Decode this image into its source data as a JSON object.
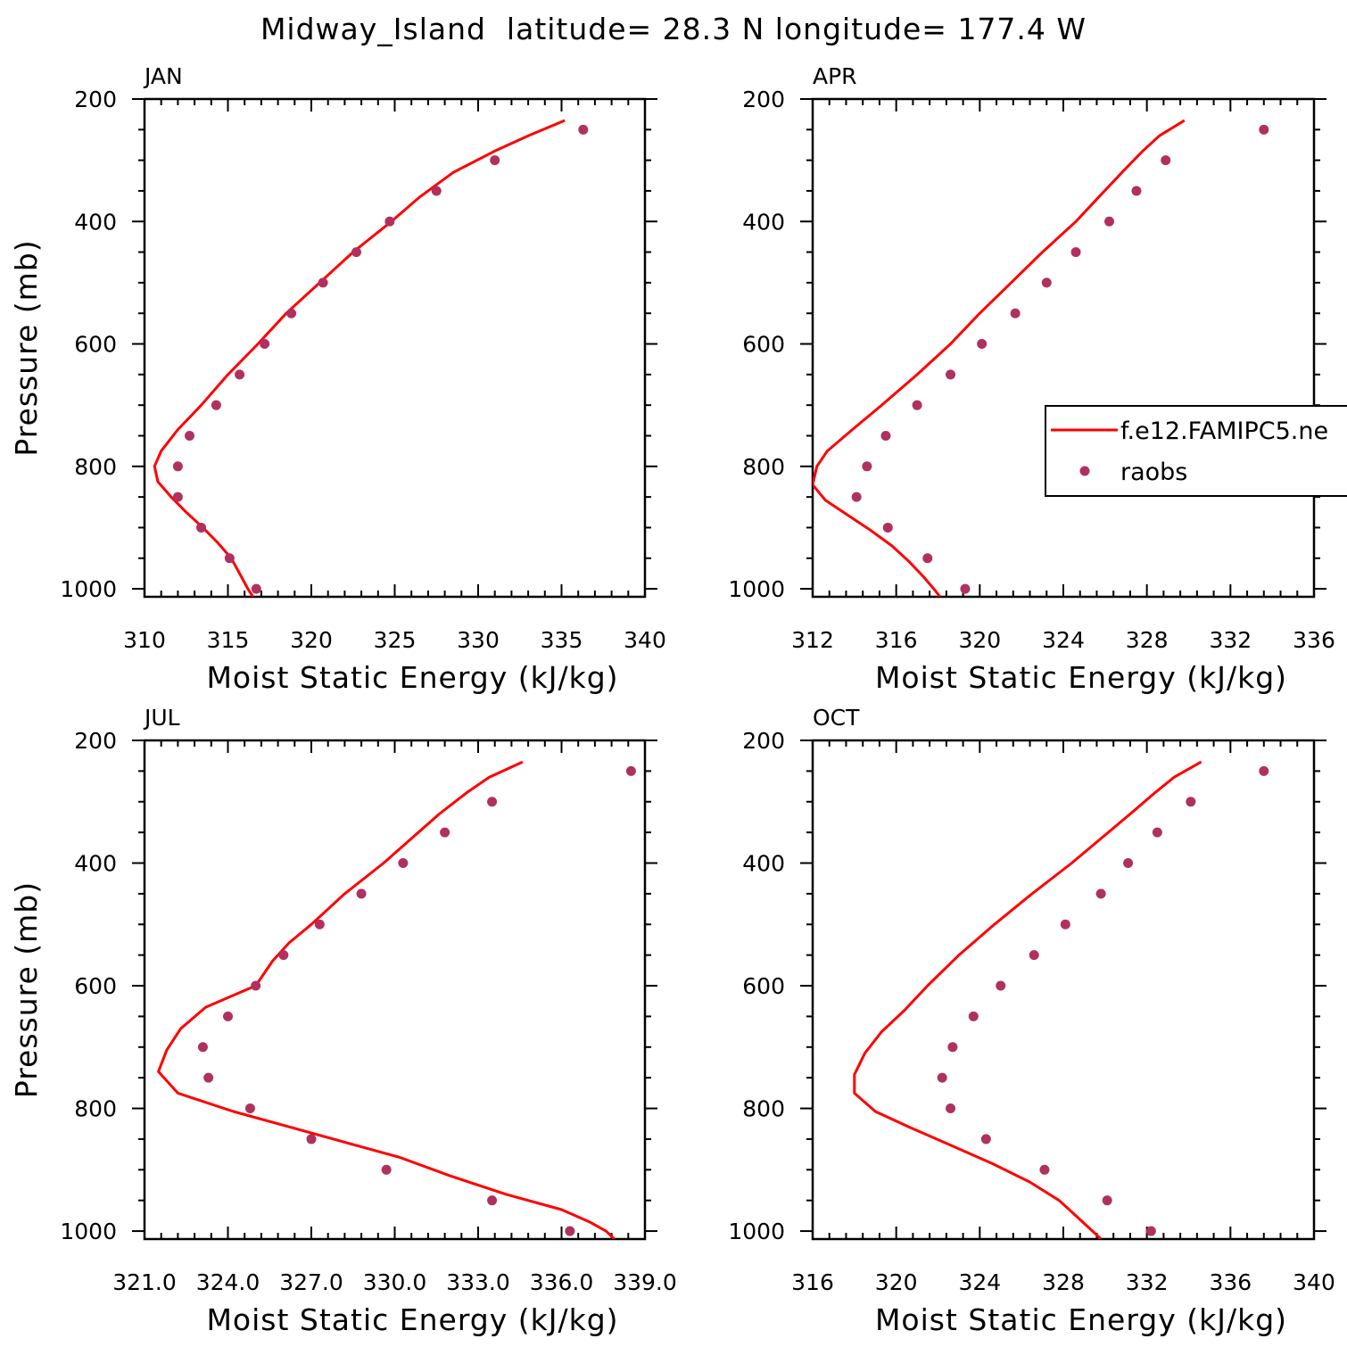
{
  "colors": {
    "model": "#ff0000",
    "obs": "#b03060",
    "axis": "#000000"
  },
  "chart_data": {
    "type": "scatter",
    "title": "Midway_Island  latitude= 28.3 N longitude= 177.4 W",
    "ylabel": "Pressure (mb)",
    "xlabel": "Moist Static Energy (kJ/kg)",
    "legend": {
      "position": "right-middle",
      "entries": [
        {
          "label": "f.e12.FAMIPC5.ne",
          "style": "line",
          "series": "model"
        },
        {
          "label": "raobs",
          "style": "marker",
          "series": "obs"
        }
      ]
    },
    "panels": [
      {
        "label": "JAN",
        "xlim": [
          310,
          340
        ],
        "ylim": [
          200,
          1013
        ],
        "xticks": [
          "310",
          "315",
          "320",
          "325",
          "330",
          "335",
          "340"
        ],
        "yticks": [
          "200",
          "400",
          "600",
          "800",
          "1000"
        ],
        "model": {
          "p": [
            235,
            260,
            285,
            320,
            360,
            400,
            450,
            500,
            550,
            600,
            650,
            700,
            740,
            775,
            800,
            825,
            850,
            875,
            900,
            925,
            950,
            975,
            1000,
            1013
          ],
          "mse": [
            335.2,
            333.0,
            331.0,
            328.5,
            326.5,
            324.8,
            322.5,
            320.5,
            318.5,
            316.8,
            315.0,
            313.4,
            312.0,
            311.0,
            310.6,
            310.8,
            311.6,
            312.5,
            313.5,
            314.4,
            315.2,
            315.7,
            316.2,
            316.5
          ]
        },
        "obs": {
          "p": [
            250,
            300,
            350,
            400,
            450,
            500,
            550,
            600,
            650,
            700,
            750,
            800,
            850,
            900,
            950,
            1000
          ],
          "mse": [
            336.3,
            331.0,
            327.5,
            324.7,
            322.7,
            320.7,
            318.8,
            317.2,
            315.7,
            314.3,
            312.7,
            312.0,
            312.0,
            313.4,
            315.1,
            316.7
          ]
        }
      },
      {
        "label": "APR",
        "xlim": [
          312,
          336
        ],
        "ylim": [
          200,
          1013
        ],
        "xticks": [
          "312",
          "316",
          "320",
          "324",
          "328",
          "332",
          "336"
        ],
        "yticks": [
          "200",
          "400",
          "600",
          "800",
          "1000"
        ],
        "model": {
          "p": [
            235,
            260,
            285,
            320,
            360,
            400,
            450,
            500,
            550,
            600,
            650,
            700,
            740,
            775,
            800,
            830,
            855,
            880,
            905,
            930,
            955,
            980,
            1000,
            1013
          ],
          "mse": [
            329.8,
            328.6,
            327.8,
            326.8,
            325.7,
            324.6,
            323.0,
            321.5,
            320.0,
            318.6,
            317.0,
            315.3,
            313.9,
            312.7,
            312.2,
            312.0,
            312.6,
            313.7,
            314.8,
            315.8,
            316.6,
            317.3,
            317.8,
            318.1
          ]
        },
        "obs": {
          "p": [
            250,
            300,
            350,
            400,
            450,
            500,
            550,
            600,
            650,
            700,
            750,
            800,
            850,
            900,
            950,
            1000
          ],
          "mse": [
            333.6,
            328.9,
            327.5,
            326.2,
            324.6,
            323.2,
            321.7,
            320.1,
            318.6,
            317.0,
            315.5,
            314.6,
            314.1,
            315.6,
            317.5,
            319.3
          ]
        }
      },
      {
        "label": "JUL",
        "xlim": [
          321,
          339
        ],
        "ylim": [
          200,
          1013
        ],
        "xticks": [
          "321.0",
          "324.0",
          "327.0",
          "330.0",
          "333.0",
          "336.0",
          "339.0"
        ],
        "yticks": [
          "200",
          "400",
          "600",
          "800",
          "1000"
        ],
        "model": {
          "p": [
            235,
            260,
            285,
            320,
            360,
            400,
            450,
            500,
            530,
            560,
            600,
            635,
            670,
            705,
            740,
            775,
            805,
            830,
            855,
            880,
            910,
            940,
            965,
            985,
            1000,
            1013
          ],
          "mse": [
            334.6,
            333.4,
            332.6,
            331.6,
            330.6,
            329.6,
            328.2,
            327.0,
            326.2,
            325.6,
            325.0,
            323.2,
            322.3,
            321.8,
            321.5,
            322.2,
            324.2,
            326.2,
            328.2,
            330.2,
            332.0,
            334.0,
            336.0,
            337.0,
            337.6,
            337.9
          ]
        },
        "obs": {
          "p": [
            250,
            300,
            350,
            400,
            450,
            500,
            550,
            600,
            650,
            700,
            750,
            800,
            850,
            900,
            950,
            1000
          ],
          "mse": [
            338.5,
            333.5,
            331.8,
            330.3,
            328.8,
            327.3,
            326.0,
            325.0,
            324.0,
            323.1,
            323.3,
            324.8,
            327.0,
            329.7,
            333.5,
            336.3
          ]
        }
      },
      {
        "label": "OCT",
        "xlim": [
          316,
          340
        ],
        "ylim": [
          200,
          1013
        ],
        "xticks": [
          "316",
          "320",
          "324",
          "328",
          "332",
          "336",
          "340"
        ],
        "yticks": [
          "200",
          "400",
          "600",
          "800",
          "1000"
        ],
        "model": {
          "p": [
            235,
            260,
            285,
            320,
            360,
            400,
            450,
            500,
            550,
            600,
            640,
            675,
            710,
            745,
            775,
            805,
            830,
            860,
            890,
            920,
            950,
            975,
            1000,
            1013
          ],
          "mse": [
            334.6,
            333.3,
            332.4,
            331.2,
            329.8,
            328.4,
            326.5,
            324.7,
            323.0,
            321.5,
            320.4,
            319.3,
            318.5,
            318.0,
            318.0,
            319.0,
            320.6,
            322.6,
            324.6,
            326.4,
            327.8,
            328.6,
            329.4,
            329.8
          ]
        },
        "obs": {
          "p": [
            250,
            300,
            350,
            400,
            450,
            500,
            550,
            600,
            650,
            700,
            750,
            800,
            850,
            900,
            950,
            1000
          ],
          "mse": [
            337.6,
            334.1,
            332.5,
            331.1,
            329.8,
            328.1,
            326.6,
            325.0,
            323.7,
            322.7,
            322.2,
            322.6,
            324.3,
            327.1,
            330.1,
            332.2
          ]
        }
      }
    ]
  }
}
